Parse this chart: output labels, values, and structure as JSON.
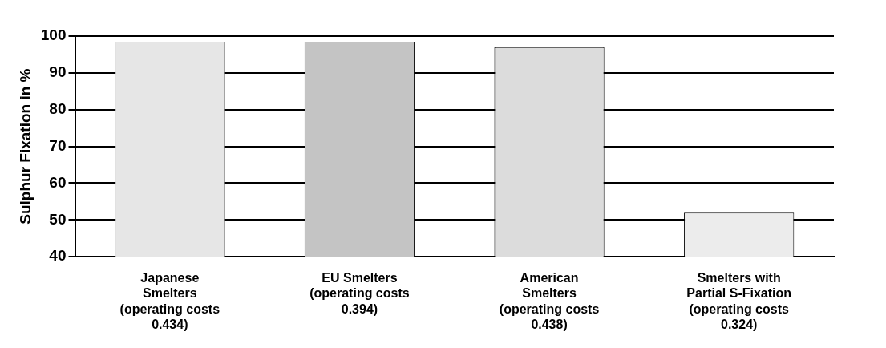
{
  "chart_data": {
    "type": "bar",
    "ylabel": "Sulphur Fixation in %",
    "categories": [
      "Japanese\nSmelters\n(operating costs\n0.434)",
      "EU Smelters\n(operating costs\n0.394)",
      "American\nSmelters\n(operating costs\n0.438)",
      "Smelters with\nPartial S-Fixation\n(operating costs\n0.324)"
    ],
    "values": [
      98.5,
      98.5,
      97,
      52
    ],
    "colors": [
      "#e6e6e6",
      "#c4c4c4",
      "#dcdcdc",
      "#ececec"
    ],
    "ylim": [
      40,
      100
    ],
    "yticks": [
      40,
      50,
      60,
      70,
      80,
      90,
      100
    ],
    "grid": "y",
    "legend": false
  }
}
